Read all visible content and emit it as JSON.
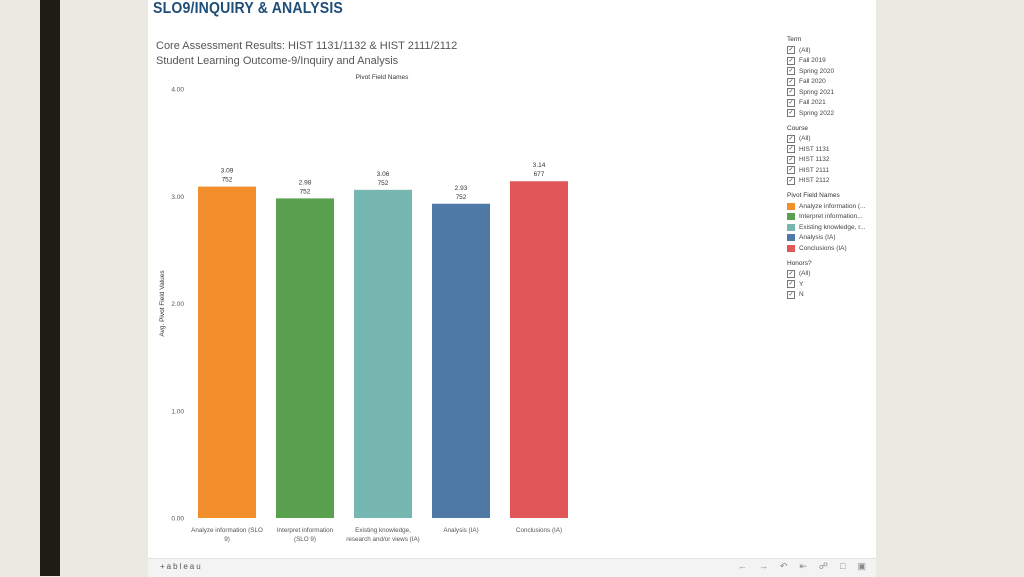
{
  "slide": {
    "title": "SLO9/INQUIRY & ANALYSIS"
  },
  "chart_data": {
    "type": "bar",
    "title": "Core Assessment Results: HIST 1131/1132 & HIST 2111/2112",
    "subtitle": "Student Learning Outcome-9/Inquiry and Analysis",
    "header": "Pivot Field Names",
    "ylabel": "Avg. Pivot Field Values",
    "ylim": [
      0,
      4
    ],
    "yticks": [
      "0.00",
      "1.00",
      "2.00",
      "3.00",
      "4.00"
    ],
    "categories": [
      "Analyze information (SLO 9)",
      "Interpret information (SLO 9)",
      "Existing knowledge, research and/or views (IA)",
      "Analysis (IA)",
      "Conclusions (IA)"
    ],
    "category_label_lines": [
      [
        "Analyze information (SLO",
        "9)"
      ],
      [
        "Interpret information",
        "(SLO 9)"
      ],
      [
        "Existing knowledge,",
        "research and/or views (IA)"
      ],
      [
        "Analysis (IA)"
      ],
      [
        "Conclusions (IA)"
      ]
    ],
    "values": [
      3.09,
      2.98,
      3.06,
      2.93,
      3.14
    ],
    "value_labels": [
      "3.09",
      "2.98",
      "3.06",
      "2.93",
      "3.14"
    ],
    "counts": [
      "752",
      "752",
      "752",
      "752",
      "677"
    ],
    "colors": [
      "#f28e2b",
      "#59a14f",
      "#76b7b2",
      "#4e79a7",
      "#e15759"
    ]
  },
  "filters": {
    "term": {
      "title": "Term",
      "items": [
        "(All)",
        "Fall 2019",
        "Spring 2020",
        "Fall 2020",
        "Spring 2021",
        "Fall 2021",
        "Spring 2022"
      ]
    },
    "course": {
      "title": "Course",
      "items": [
        "(All)",
        "HIST 1131",
        "HIST 1132",
        "HIST 2111",
        "HIST 2112"
      ]
    },
    "legend": {
      "title": "Pivot Field Names",
      "items": [
        "Analyze information (...",
        "Interpret information...",
        "Existing knowledge, r...",
        "Analysis (IA)",
        "Conclusions (IA)"
      ],
      "colors": [
        "#f28e2b",
        "#59a14f",
        "#76b7b2",
        "#4e79a7",
        "#e15759"
      ]
    },
    "honors": {
      "title": "Honors?",
      "items": [
        "(All)",
        "Y",
        "N"
      ]
    }
  },
  "footer": {
    "logo": "+ableau"
  }
}
